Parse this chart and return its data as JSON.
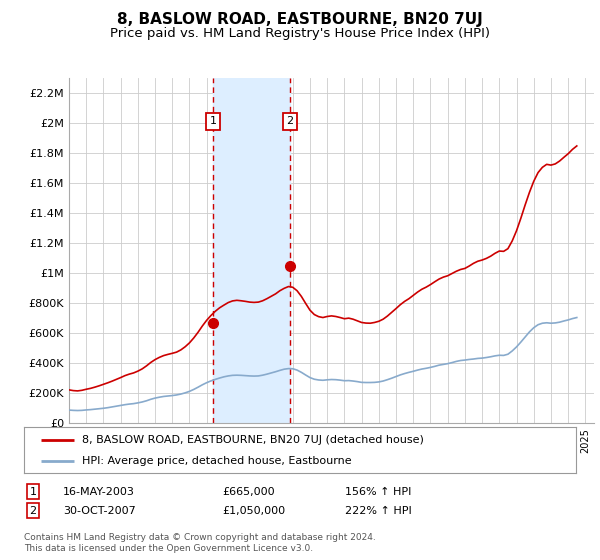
{
  "title": "8, BASLOW ROAD, EASTBOURNE, BN20 7UJ",
  "subtitle": "Price paid vs. HM Land Registry's House Price Index (HPI)",
  "title_fontsize": 11,
  "subtitle_fontsize": 9.5,
  "ylabel_ticks": [
    "£0",
    "£200K",
    "£400K",
    "£600K",
    "£800K",
    "£1M",
    "£1.2M",
    "£1.4M",
    "£1.6M",
    "£1.8M",
    "£2M",
    "£2.2M"
  ],
  "ytick_values": [
    0,
    200000,
    400000,
    600000,
    800000,
    1000000,
    1200000,
    1400000,
    1600000,
    1800000,
    2000000,
    2200000
  ],
  "ylim": [
    0,
    2300000
  ],
  "xlim_start": 1995.0,
  "xlim_end": 2025.5,
  "sale1_date": 2003.37,
  "sale1_price": 665000,
  "sale1_label": "1",
  "sale2_date": 2007.83,
  "sale2_price": 1050000,
  "sale2_label": "2",
  "red_line_color": "#cc0000",
  "blue_line_color": "#88aacc",
  "shade_color": "#ddeeff",
  "background_color": "#ffffff",
  "grid_color": "#cccccc",
  "legend_line1": "8, BASLOW ROAD, EASTBOURNE, BN20 7UJ (detached house)",
  "legend_line2": "HPI: Average price, detached house, Eastbourne",
  "footnote": "Contains HM Land Registry data © Crown copyright and database right 2024.\nThis data is licensed under the Open Government Licence v3.0.",
  "hpi_x": [
    1995.0,
    1995.25,
    1995.5,
    1995.75,
    1996.0,
    1996.25,
    1996.5,
    1996.75,
    1997.0,
    1997.25,
    1997.5,
    1997.75,
    1998.0,
    1998.25,
    1998.5,
    1998.75,
    1999.0,
    1999.25,
    1999.5,
    1999.75,
    2000.0,
    2000.25,
    2000.5,
    2000.75,
    2001.0,
    2001.25,
    2001.5,
    2001.75,
    2002.0,
    2002.25,
    2002.5,
    2002.75,
    2003.0,
    2003.25,
    2003.5,
    2003.75,
    2004.0,
    2004.25,
    2004.5,
    2004.75,
    2005.0,
    2005.25,
    2005.5,
    2005.75,
    2006.0,
    2006.25,
    2006.5,
    2006.75,
    2007.0,
    2007.25,
    2007.5,
    2007.75,
    2008.0,
    2008.25,
    2008.5,
    2008.75,
    2009.0,
    2009.25,
    2009.5,
    2009.75,
    2010.0,
    2010.25,
    2010.5,
    2010.75,
    2011.0,
    2011.25,
    2011.5,
    2011.75,
    2012.0,
    2012.25,
    2012.5,
    2012.75,
    2013.0,
    2013.25,
    2013.5,
    2013.75,
    2014.0,
    2014.25,
    2014.5,
    2014.75,
    2015.0,
    2015.25,
    2015.5,
    2015.75,
    2016.0,
    2016.25,
    2016.5,
    2016.75,
    2017.0,
    2017.25,
    2017.5,
    2017.75,
    2018.0,
    2018.25,
    2018.5,
    2018.75,
    2019.0,
    2019.25,
    2019.5,
    2019.75,
    2020.0,
    2020.25,
    2020.5,
    2020.75,
    2021.0,
    2021.25,
    2021.5,
    2021.75,
    2022.0,
    2022.25,
    2022.5,
    2022.75,
    2023.0,
    2023.25,
    2023.5,
    2023.75,
    2024.0,
    2024.25,
    2024.5
  ],
  "hpi_y": [
    85000,
    83000,
    82000,
    83000,
    86000,
    88000,
    91000,
    94000,
    97000,
    101000,
    106000,
    111000,
    116000,
    121000,
    125000,
    128000,
    133000,
    139000,
    147000,
    157000,
    165000,
    171000,
    176000,
    179000,
    182000,
    186000,
    192000,
    200000,
    210000,
    223000,
    238000,
    254000,
    268000,
    280000,
    290000,
    299000,
    307000,
    313000,
    317000,
    318000,
    317000,
    315000,
    313000,
    312000,
    313000,
    318000,
    325000,
    333000,
    341000,
    350000,
    358000,
    362000,
    361000,
    352000,
    337000,
    319000,
    302000,
    291000,
    286000,
    284000,
    287000,
    289000,
    288000,
    285000,
    281000,
    282000,
    279000,
    275000,
    270000,
    269000,
    269000,
    270000,
    273000,
    279000,
    288000,
    298000,
    309000,
    320000,
    329000,
    337000,
    344000,
    352000,
    359000,
    364000,
    370000,
    377000,
    385000,
    390000,
    395000,
    402000,
    410000,
    416000,
    419000,
    423000,
    426000,
    430000,
    432000,
    436000,
    441000,
    447000,
    451000,
    450000,
    458000,
    480000,
    507000,
    539000,
    573000,
    607000,
    635000,
    655000,
    665000,
    668000,
    665000,
    667000,
    672000,
    680000,
    687000,
    696000,
    703000
  ],
  "red_x": [
    1995.0,
    1995.25,
    1995.5,
    1995.75,
    1996.0,
    1996.25,
    1996.5,
    1996.75,
    1997.0,
    1997.25,
    1997.5,
    1997.75,
    1998.0,
    1998.25,
    1998.5,
    1998.75,
    1999.0,
    1999.25,
    1999.5,
    1999.75,
    2000.0,
    2000.25,
    2000.5,
    2000.75,
    2001.0,
    2001.25,
    2001.5,
    2001.75,
    2002.0,
    2002.25,
    2002.5,
    2002.75,
    2003.0,
    2003.25,
    2003.5,
    2003.75,
    2004.0,
    2004.25,
    2004.5,
    2004.75,
    2005.0,
    2005.25,
    2005.5,
    2005.75,
    2006.0,
    2006.25,
    2006.5,
    2006.75,
    2007.0,
    2007.25,
    2007.5,
    2007.75,
    2008.0,
    2008.25,
    2008.5,
    2008.75,
    2009.0,
    2009.25,
    2009.5,
    2009.75,
    2010.0,
    2010.25,
    2010.5,
    2010.75,
    2011.0,
    2011.25,
    2011.5,
    2011.75,
    2012.0,
    2012.25,
    2012.5,
    2012.75,
    2013.0,
    2013.25,
    2013.5,
    2013.75,
    2014.0,
    2014.25,
    2014.5,
    2014.75,
    2015.0,
    2015.25,
    2015.5,
    2015.75,
    2016.0,
    2016.25,
    2016.5,
    2016.75,
    2017.0,
    2017.25,
    2017.5,
    2017.75,
    2018.0,
    2018.25,
    2018.5,
    2018.75,
    2019.0,
    2019.25,
    2019.5,
    2019.75,
    2020.0,
    2020.25,
    2020.5,
    2020.75,
    2021.0,
    2021.25,
    2021.5,
    2021.75,
    2022.0,
    2022.25,
    2022.5,
    2022.75,
    2023.0,
    2023.25,
    2023.5,
    2023.75,
    2024.0,
    2024.25,
    2024.5
  ],
  "red_y": [
    220000,
    215000,
    213000,
    217000,
    224000,
    230000,
    238000,
    247000,
    257000,
    267000,
    278000,
    290000,
    302000,
    315000,
    325000,
    333000,
    345000,
    360000,
    380000,
    403000,
    422000,
    437000,
    449000,
    457000,
    464000,
    472000,
    487000,
    508000,
    534000,
    567000,
    605000,
    647000,
    685000,
    717000,
    745000,
    768000,
    786000,
    803000,
    814000,
    818000,
    815000,
    811000,
    806000,
    804000,
    806000,
    815000,
    829000,
    845000,
    861000,
    882000,
    898000,
    910000,
    905000,
    882000,
    844000,
    797000,
    752000,
    723000,
    709000,
    703000,
    710000,
    714000,
    710000,
    703000,
    695000,
    699000,
    692000,
    681000,
    670000,
    666000,
    665000,
    670000,
    678000,
    692000,
    713000,
    738000,
    763000,
    789000,
    811000,
    829000,
    851000,
    873000,
    892000,
    906000,
    923000,
    942000,
    960000,
    973000,
    982000,
    997000,
    1012000,
    1024000,
    1031000,
    1047000,
    1065000,
    1079000,
    1087000,
    1098000,
    1113000,
    1132000,
    1147000,
    1145000,
    1163000,
    1215000,
    1283000,
    1366000,
    1455000,
    1539000,
    1613000,
    1671000,
    1706000,
    1726000,
    1721000,
    1729000,
    1748000,
    1773000,
    1797000,
    1826000,
    1849000
  ]
}
